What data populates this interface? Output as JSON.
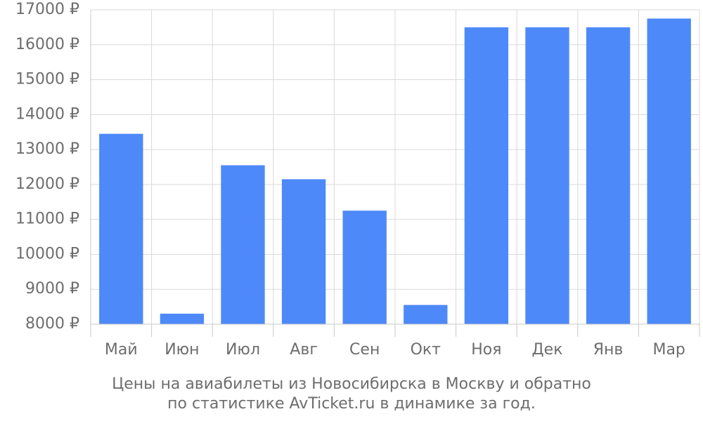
{
  "chart_data": {
    "type": "bar",
    "categories": [
      "Май",
      "Июн",
      "Июл",
      "Авг",
      "Сен",
      "Окт",
      "Ноя",
      "Дек",
      "Янв",
      "Мар"
    ],
    "values": [
      13450,
      8300,
      12550,
      12150,
      11250,
      8550,
      16500,
      16500,
      16500,
      16750
    ],
    "ylim": [
      8000,
      17000
    ],
    "y_ticks": [
      8000,
      9000,
      10000,
      11000,
      12000,
      13000,
      14000,
      15000,
      16000,
      17000
    ],
    "y_tick_labels": [
      "8000 ₽",
      "9000 ₽",
      "10000 ₽",
      "11000 ₽",
      "12000 ₽",
      "13000 ₽",
      "14000 ₽",
      "15000 ₽",
      "16000 ₽",
      "17000 ₽"
    ],
    "title_line1": "Цены на авиабилеты из Новосибирска в Москву и обратно",
    "title_line2": "по статистике AvTicket.ru в динамике за год.",
    "xlabel": "",
    "ylabel": "",
    "grid": true,
    "bar_color": "#4d89f9",
    "grid_color": "#d9d9d9",
    "text_color": "#6d6d6d"
  }
}
